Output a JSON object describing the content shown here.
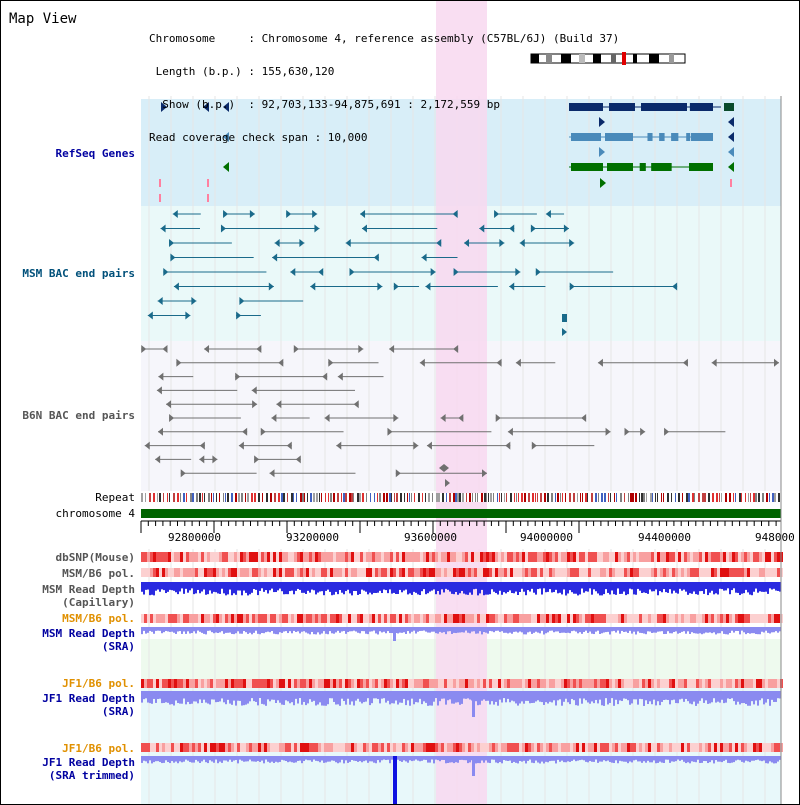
{
  "header": {
    "title": "Map View",
    "lines": [
      "Chromosome     : Chromosome 4, reference assembly (C57BL/6J) (Build 37)",
      " Length (b.p.) : 155,630,120",
      "  Show (b.p.)  : 92,703,133-94,875,691 : 2,172,559 bp",
      "Read coverage check span : 10,000"
    ]
  },
  "tracks": {
    "refseq": "RefSeq Genes",
    "msm_bac": "MSM BAC end pairs",
    "b6n_bac": "B6N BAC end pairs",
    "repeat": "Repeat",
    "chromosome": "chromosome 4",
    "dbsnp": "dbSNP(Mouse)",
    "msm_pol_1": "MSM/B6 pol.",
    "msm_depth_cap_1": "MSM Read Depth",
    "msm_depth_cap_2": "(Capillary)",
    "msm_pol_2": "MSM/B6 pol.",
    "msm_depth_sra_1": "MSM Read Depth",
    "msm_depth_sra_2": "(SRA)",
    "jf1_pol_1": "JF1/B6 pol.",
    "jf1_depth_sra_1": "JF1 Read Depth",
    "jf1_depth_sra_2": "(SRA)",
    "jf1_pol_2": "JF1/B6 pol.",
    "jf1_depth_trim_1": "JF1 Read Depth",
    "jf1_depth_trim_2": "(SRA trimmed)"
  },
  "axis": {
    "ticks": [
      "92800000",
      "93200000",
      "93600000",
      "94000000",
      "94400000",
      "948000"
    ]
  },
  "colors": {
    "refseq_bg": "#d8eef8",
    "bac_bg": "#eaf9f9",
    "highlight": "#f8d8f0",
    "label_blue": "#0000a0",
    "label_orange": "#e09000",
    "gene_dark": "#0a2a6a",
    "gene_mid": "#4a8aba",
    "gene_green": "#007000",
    "bac_teal": "#1a6a8a",
    "bac_gray": "#707070",
    "chromosome_green": "#006400",
    "depth_blue": "#2a2ae0",
    "depth_light": "#8a8af0"
  }
}
